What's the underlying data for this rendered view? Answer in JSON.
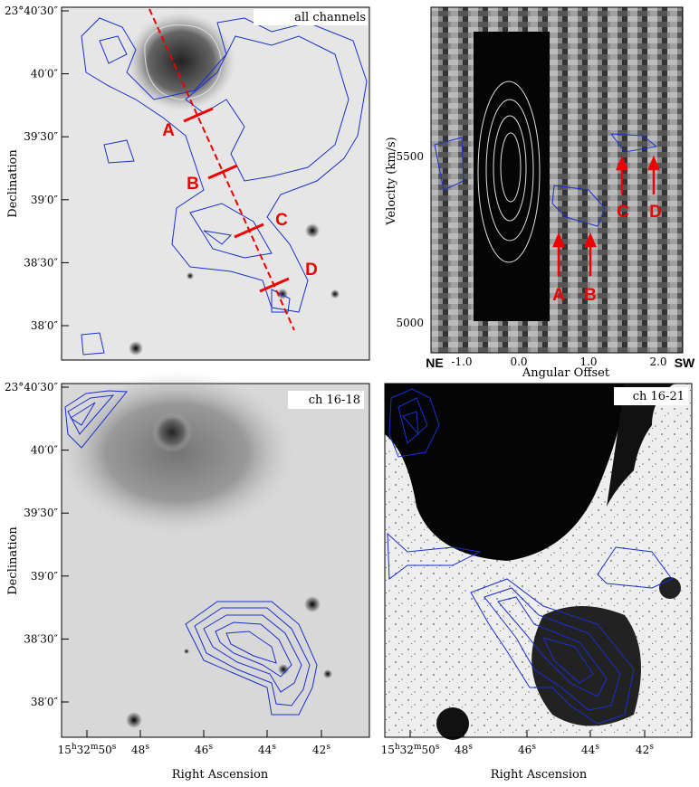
{
  "panels": [
    {
      "label": "all channels",
      "ylabel": "Declination",
      "yticks": [
        "23°40′30″",
        "40′0″",
        "39′30″",
        "39′0″",
        "38′30″",
        "38′0″"
      ],
      "markers": [
        "A",
        "B",
        "C",
        "D"
      ]
    },
    {
      "ylabel": "Velocity (km/s)",
      "yticks": [
        "5500",
        "5000"
      ],
      "xticks": [
        "-1.0",
        "0.0",
        "1.0",
        "2.0"
      ],
      "left": "NE",
      "right": "SW",
      "xlabel": "Angular Offset",
      "markers": [
        "A",
        "B",
        "C",
        "D"
      ]
    },
    {
      "label": "ch 16-18",
      "ylabel": "Declination",
      "yticks": [
        "23°40′30″",
        "40′0″",
        "39′30″",
        "39′0″",
        "38′30″",
        "38′0″"
      ],
      "xticks": [
        [
          "15",
          "h",
          "32",
          "m",
          "50",
          "s"
        ],
        [
          "48",
          "s"
        ],
        [
          "46",
          "s"
        ],
        [
          "44",
          "s"
        ],
        [
          "42",
          "s"
        ]
      ],
      "xlabel": "Right Ascension"
    },
    {
      "label": "ch 16-21",
      "xticks": [
        [
          "15",
          "h",
          "32",
          "m",
          "50",
          "s"
        ],
        [
          "48",
          "s"
        ],
        [
          "46",
          "s"
        ],
        [
          "44",
          "s"
        ],
        [
          "42",
          "s"
        ]
      ],
      "xlabel": "Right Ascension"
    }
  ]
}
